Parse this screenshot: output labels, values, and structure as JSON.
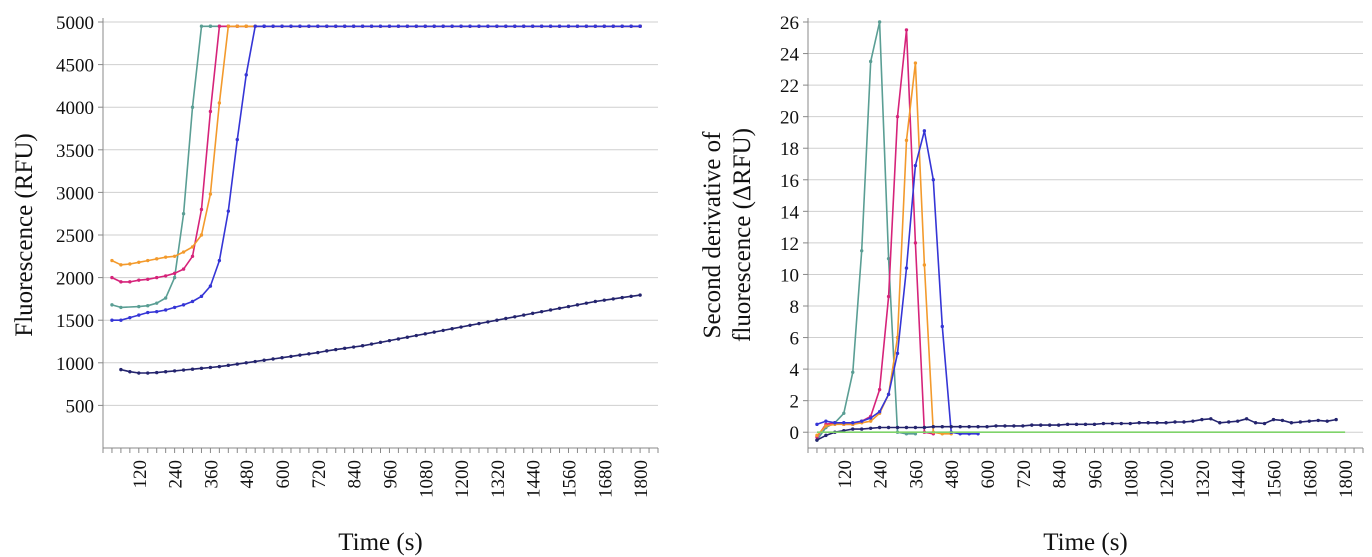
{
  "chart_data": [
    {
      "type": "line",
      "title": "",
      "xlabel": "Time (s)",
      "ylabel": "Fluorescence (RFU)",
      "xlim": [
        0,
        1860
      ],
      "ylim": [
        0,
        5000
      ],
      "x_ticks": [
        120,
        240,
        360,
        480,
        600,
        720,
        840,
        960,
        1080,
        1200,
        1320,
        1440,
        1560,
        1680,
        1800
      ],
      "y_ticks": [
        500,
        1000,
        1500,
        2000,
        2500,
        3000,
        3500,
        4000,
        4500,
        5000
      ],
      "grid": true,
      "series": [
        {
          "color": "#5a9e94",
          "x": [
            30,
            60,
            120,
            150,
            180,
            210,
            240,
            270,
            300,
            330,
            360,
            1800
          ],
          "y": [
            1680,
            1650,
            1660,
            1670,
            1700,
            1760,
            2000,
            2750,
            4000,
            4950,
            4950,
            4950
          ]
        },
        {
          "color": "#d6237a",
          "x": [
            30,
            60,
            90,
            120,
            150,
            180,
            210,
            240,
            270,
            300,
            330,
            360,
            390,
            420,
            450,
            1800
          ],
          "y": [
            2000,
            1950,
            1950,
            1970,
            1980,
            2000,
            2020,
            2050,
            2100,
            2250,
            2800,
            3950,
            4950,
            4950,
            4950,
            4950
          ]
        },
        {
          "color": "#f39a2c",
          "x": [
            30,
            60,
            90,
            120,
            150,
            180,
            210,
            240,
            270,
            300,
            330,
            360,
            390,
            420,
            450,
            480,
            1800
          ],
          "y": [
            2200,
            2150,
            2160,
            2180,
            2200,
            2220,
            2240,
            2250,
            2300,
            2360,
            2500,
            2980,
            4050,
            4950,
            4950,
            4950,
            4950
          ]
        },
        {
          "color": "#3535d6",
          "x": [
            30,
            60,
            90,
            120,
            150,
            180,
            210,
            240,
            270,
            300,
            330,
            360,
            390,
            420,
            450,
            480,
            510,
            540,
            1800
          ],
          "y": [
            1500,
            1500,
            1530,
            1560,
            1590,
            1600,
            1620,
            1650,
            1680,
            1720,
            1780,
            1900,
            2200,
            2780,
            3620,
            4380,
            4950,
            4950,
            4950
          ]
        },
        {
          "color": "#24246e",
          "x": [
            60,
            90,
            120,
            150,
            180,
            210,
            240,
            270,
            300,
            330,
            360,
            390,
            420,
            450,
            480,
            510,
            540,
            570,
            600,
            630,
            660,
            690,
            720,
            750,
            780,
            810,
            840,
            870,
            900,
            930,
            960,
            990,
            1020,
            1050,
            1080,
            1110,
            1140,
            1170,
            1200,
            1230,
            1260,
            1290,
            1320,
            1350,
            1380,
            1410,
            1440,
            1470,
            1500,
            1530,
            1560,
            1590,
            1620,
            1650,
            1680,
            1710,
            1740,
            1770,
            1800
          ],
          "y": [
            920,
            895,
            880,
            880,
            885,
            895,
            905,
            915,
            925,
            935,
            945,
            955,
            970,
            985,
            1000,
            1015,
            1030,
            1045,
            1060,
            1075,
            1090,
            1105,
            1120,
            1140,
            1155,
            1170,
            1185,
            1200,
            1220,
            1240,
            1260,
            1280,
            1300,
            1320,
            1340,
            1360,
            1380,
            1400,
            1420,
            1440,
            1460,
            1480,
            1500,
            1520,
            1540,
            1560,
            1580,
            1600,
            1620,
            1640,
            1660,
            1680,
            1700,
            1720,
            1735,
            1750,
            1765,
            1780,
            1795
          ]
        }
      ]
    },
    {
      "type": "line",
      "title": "",
      "xlabel": "Time (s)",
      "ylabel_lines": [
        "Second derivative of",
        "fluorescence (ΔRFU)"
      ],
      "xlim": [
        0,
        1860
      ],
      "ylim": [
        -1,
        26
      ],
      "x_ticks": [
        120,
        240,
        360,
        480,
        600,
        720,
        840,
        960,
        1080,
        1200,
        1320,
        1440,
        1560,
        1680,
        1800
      ],
      "y_ticks": [
        0,
        2,
        4,
        6,
        8,
        10,
        12,
        14,
        16,
        18,
        20,
        22,
        24,
        26
      ],
      "grid": true,
      "series": [
        {
          "color": "#5a9e94",
          "x": [
            30,
            60,
            90,
            120,
            150,
            180,
            210,
            240,
            270,
            300,
            330,
            360
          ],
          "y": [
            -0.5,
            0.3,
            0.6,
            1.2,
            3.8,
            11.5,
            23.5,
            26.0,
            11.0,
            0.0,
            -0.1,
            -0.1
          ]
        },
        {
          "color": "#d6237a",
          "x": [
            30,
            60,
            90,
            120,
            150,
            180,
            210,
            240,
            270,
            300,
            330,
            360,
            390,
            420
          ],
          "y": [
            -0.3,
            0.5,
            0.6,
            0.5,
            0.5,
            0.7,
            1.0,
            2.7,
            8.6,
            20.0,
            25.5,
            12.0,
            0.0,
            -0.1
          ]
        },
        {
          "color": "#f39a2c",
          "x": [
            30,
            60,
            90,
            120,
            150,
            180,
            210,
            240,
            270,
            300,
            330,
            360,
            390,
            420,
            450,
            480
          ],
          "y": [
            -0.2,
            0.4,
            0.5,
            0.5,
            0.5,
            0.6,
            0.7,
            1.2,
            2.4,
            6.0,
            18.5,
            23.4,
            10.6,
            0.0,
            -0.1,
            -0.1
          ]
        },
        {
          "color": "#3535d6",
          "x": [
            30,
            60,
            90,
            120,
            150,
            180,
            210,
            240,
            270,
            300,
            330,
            360,
            390,
            420,
            450,
            480,
            510,
            540,
            570
          ],
          "y": [
            0.5,
            0.7,
            0.6,
            0.6,
            0.6,
            0.7,
            0.9,
            1.3,
            2.4,
            5.0,
            10.4,
            16.9,
            19.1,
            16.0,
            6.7,
            0.0,
            -0.1,
            -0.1,
            -0.1
          ]
        },
        {
          "color": "#24246e",
          "x": [
            30,
            60,
            90,
            120,
            150,
            180,
            210,
            240,
            270,
            300,
            330,
            360,
            390,
            420,
            450,
            480,
            510,
            540,
            570,
            600,
            630,
            660,
            690,
            720,
            750,
            780,
            810,
            840,
            870,
            900,
            930,
            960,
            990,
            1020,
            1050,
            1080,
            1110,
            1140,
            1170,
            1200,
            1230,
            1260,
            1290,
            1320,
            1350,
            1380,
            1410,
            1440,
            1470,
            1500,
            1530,
            1560,
            1590,
            1620,
            1650,
            1680,
            1710,
            1740,
            1770
          ],
          "y": [
            -0.5,
            -0.2,
            0.0,
            0.1,
            0.2,
            0.2,
            0.25,
            0.3,
            0.3,
            0.3,
            0.3,
            0.3,
            0.3,
            0.35,
            0.35,
            0.35,
            0.35,
            0.35,
            0.35,
            0.35,
            0.4,
            0.4,
            0.4,
            0.4,
            0.45,
            0.45,
            0.45,
            0.45,
            0.5,
            0.5,
            0.5,
            0.5,
            0.55,
            0.55,
            0.55,
            0.55,
            0.6,
            0.6,
            0.6,
            0.6,
            0.65,
            0.65,
            0.7,
            0.8,
            0.85,
            0.6,
            0.65,
            0.7,
            0.85,
            0.6,
            0.55,
            0.8,
            0.75,
            0.6,
            0.65,
            0.7,
            0.75,
            0.7,
            0.8
          ]
        },
        {
          "color": "#7fd36a",
          "x": [
            30,
            1800
          ],
          "y": [
            0.0,
            0.0
          ]
        }
      ]
    }
  ]
}
